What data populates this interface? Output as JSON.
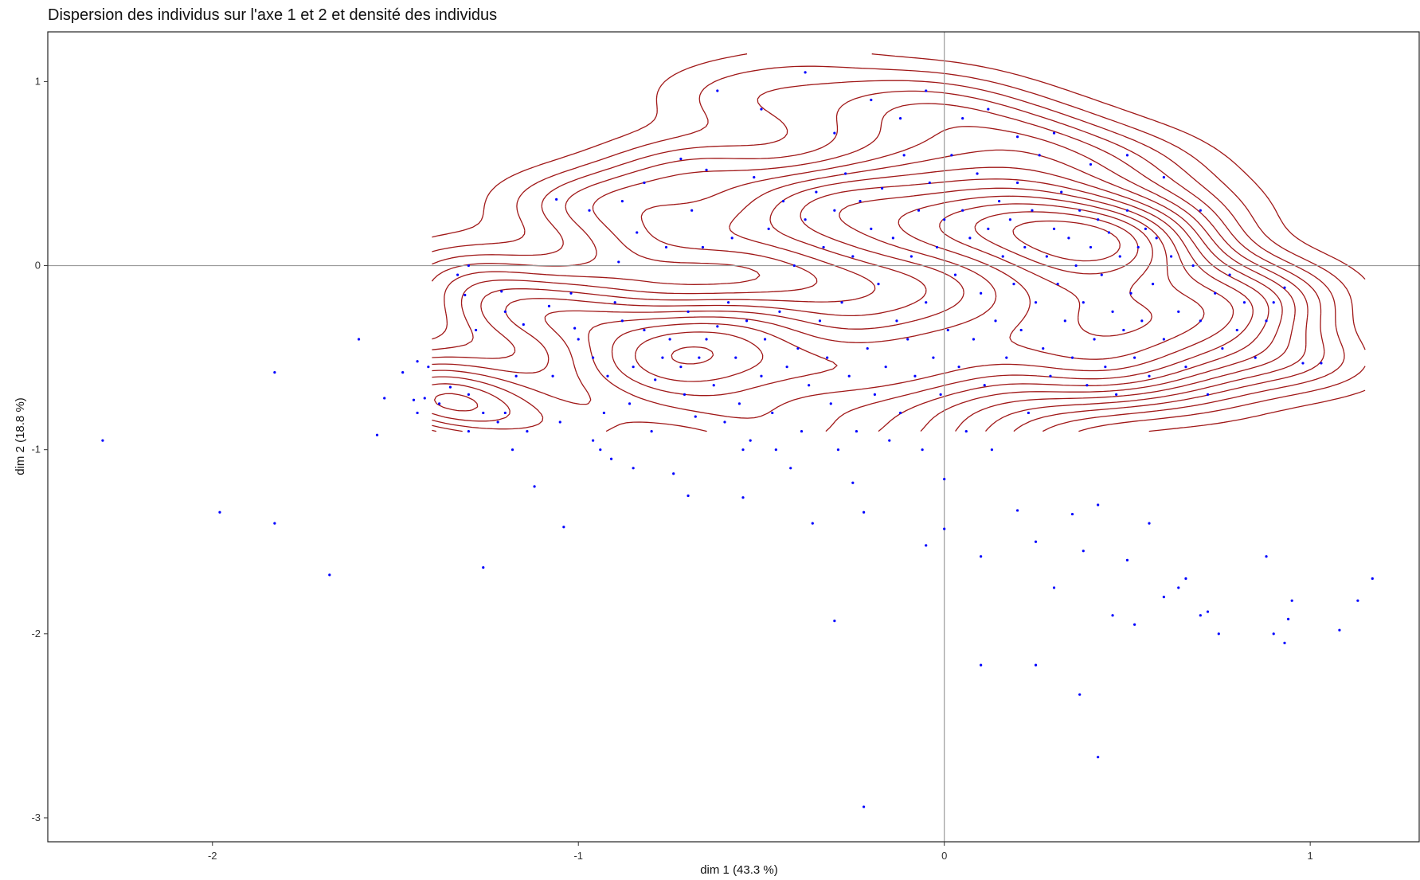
{
  "chart_data": {
    "type": "scatter",
    "title": "Dispersion des individus sur l'axe 1 et 2 et densité des individus",
    "xlabel": "dim 1 (43.3 %)",
    "ylabel": "dim 2 (18.8 %)",
    "xlim": [
      -2.45,
      1.3
    ],
    "ylim": [
      -3.13,
      1.27
    ],
    "xticks": [
      -2,
      -1,
      0,
      1
    ],
    "yticks": [
      -3,
      -2,
      -1,
      0,
      1
    ],
    "xtick_labels": [
      "-2",
      "-1",
      "0",
      "1"
    ],
    "ytick_labels": [
      "-3",
      "-2",
      "-1",
      "0",
      "1"
    ],
    "grid": false,
    "reference_lines": {
      "x": 0,
      "y": 0
    },
    "colors": {
      "points": "#0000ff",
      "contours": "#a01818",
      "reference_lines": "#9a9a9a",
      "frame": "#222222"
    },
    "series": [
      {
        "type": "scatter",
        "points": [
          [
            -2.3,
            -0.95
          ],
          [
            -1.98,
            -1.34
          ],
          [
            -1.83,
            -0.58
          ],
          [
            -1.83,
            -1.4
          ],
          [
            -1.68,
            -1.68
          ],
          [
            -1.6,
            -0.4
          ],
          [
            -1.55,
            -0.92
          ],
          [
            -1.53,
            -0.72
          ],
          [
            -1.48,
            -0.58
          ],
          [
            -1.45,
            -0.73
          ],
          [
            -1.44,
            -0.8
          ],
          [
            -1.44,
            -0.52
          ],
          [
            -1.42,
            -0.72
          ],
          [
            -1.41,
            -0.55
          ],
          [
            -1.38,
            -0.75
          ],
          [
            -1.35,
            -0.66
          ],
          [
            -1.33,
            -0.05
          ],
          [
            -1.31,
            -0.16
          ],
          [
            -1.3,
            0.0
          ],
          [
            -1.28,
            -0.35
          ],
          [
            -1.3,
            -0.9
          ],
          [
            -1.3,
            -0.7
          ],
          [
            -1.26,
            -0.8
          ],
          [
            -1.26,
            -1.64
          ],
          [
            -1.22,
            -0.85
          ],
          [
            -1.2,
            -0.8
          ],
          [
            -1.21,
            -0.14
          ],
          [
            -1.2,
            -0.25
          ],
          [
            -1.18,
            -1.0
          ],
          [
            -1.17,
            -0.6
          ],
          [
            -1.15,
            -0.32
          ],
          [
            -1.14,
            -0.9
          ],
          [
            -1.12,
            -1.2
          ],
          [
            -1.08,
            -0.22
          ],
          [
            -1.07,
            -0.6
          ],
          [
            -1.06,
            0.36
          ],
          [
            -1.05,
            -0.85
          ],
          [
            -1.04,
            -1.42
          ],
          [
            -1.02,
            -0.15
          ],
          [
            -1.01,
            -0.34
          ],
          [
            -1.0,
            -0.4
          ],
          [
            -0.97,
            0.3
          ],
          [
            -0.96,
            -0.5
          ],
          [
            -0.96,
            -0.95
          ],
          [
            -0.94,
            -1.0
          ],
          [
            -0.93,
            -0.8
          ],
          [
            -0.92,
            -0.6
          ],
          [
            -0.91,
            -1.05
          ],
          [
            -0.9,
            -0.2
          ],
          [
            -0.89,
            0.02
          ],
          [
            -0.88,
            -0.3
          ],
          [
            -0.86,
            -0.75
          ],
          [
            -0.85,
            -0.55
          ],
          [
            -0.84,
            0.18
          ],
          [
            -0.82,
            -0.35
          ],
          [
            -0.8,
            -0.9
          ],
          [
            -0.79,
            -0.62
          ],
          [
            -0.77,
            -0.5
          ],
          [
            -0.76,
            0.1
          ],
          [
            -0.75,
            -0.4
          ],
          [
            -0.74,
            -1.13
          ],
          [
            -0.72,
            -0.55
          ],
          [
            -0.71,
            -0.7
          ],
          [
            -0.7,
            -0.25
          ],
          [
            -0.69,
            0.3
          ],
          [
            -0.68,
            -0.82
          ],
          [
            -0.67,
            -0.5
          ],
          [
            -0.66,
            0.1
          ],
          [
            -0.65,
            -0.4
          ],
          [
            -0.63,
            -0.65
          ],
          [
            -0.62,
            -0.33
          ],
          [
            -0.6,
            -0.85
          ],
          [
            -0.59,
            -0.2
          ],
          [
            -0.58,
            0.15
          ],
          [
            -0.57,
            -0.5
          ],
          [
            -0.56,
            -0.75
          ],
          [
            -0.55,
            -1.26
          ],
          [
            -0.54,
            -0.3
          ],
          [
            -0.53,
            -0.95
          ],
          [
            -0.52,
            0.48
          ],
          [
            -0.5,
            -0.6
          ],
          [
            -0.49,
            -0.4
          ],
          [
            -0.48,
            0.2
          ],
          [
            -0.47,
            -0.8
          ],
          [
            -0.46,
            -1.0
          ],
          [
            -0.45,
            -0.25
          ],
          [
            -0.44,
            0.35
          ],
          [
            -0.43,
            -0.55
          ],
          [
            -0.42,
            -1.1
          ],
          [
            -0.41,
            0.0
          ],
          [
            -0.4,
            -0.45
          ],
          [
            -0.39,
            -0.9
          ],
          [
            -0.38,
            0.25
          ],
          [
            -0.37,
            -0.65
          ],
          [
            -0.36,
            -1.4
          ],
          [
            -0.35,
            0.4
          ],
          [
            -0.34,
            -0.3
          ],
          [
            -0.33,
            0.1
          ],
          [
            -0.32,
            -0.5
          ],
          [
            -0.31,
            -0.75
          ],
          [
            -0.3,
            0.3
          ],
          [
            -0.29,
            -1.0
          ],
          [
            -0.28,
            -0.2
          ],
          [
            -0.27,
            0.5
          ],
          [
            -0.26,
            -0.6
          ],
          [
            -0.25,
            0.05
          ],
          [
            -0.24,
            -0.9
          ],
          [
            -0.23,
            0.35
          ],
          [
            -0.22,
            -1.34
          ],
          [
            -0.21,
            -0.45
          ],
          [
            -0.2,
            0.2
          ],
          [
            -0.19,
            -0.7
          ],
          [
            -0.18,
            -0.1
          ],
          [
            -0.17,
            0.42
          ],
          [
            -0.16,
            -0.55
          ],
          [
            -0.15,
            -0.95
          ],
          [
            -0.14,
            0.15
          ],
          [
            -0.13,
            -0.3
          ],
          [
            -0.12,
            -0.8
          ],
          [
            -0.11,
            0.6
          ],
          [
            -0.1,
            -0.4
          ],
          [
            -0.09,
            0.05
          ],
          [
            -0.08,
            -0.6
          ],
          [
            -0.07,
            0.3
          ],
          [
            -0.06,
            -1.0
          ],
          [
            -0.05,
            -0.2
          ],
          [
            -0.04,
            0.45
          ],
          [
            -0.03,
            -0.5
          ],
          [
            -0.02,
            0.1
          ],
          [
            -0.01,
            -0.7
          ],
          [
            0.0,
            -1.16
          ],
          [
            0.0,
            0.25
          ],
          [
            0.01,
            -0.35
          ],
          [
            0.02,
            0.6
          ],
          [
            0.03,
            -0.05
          ],
          [
            0.04,
            -0.55
          ],
          [
            0.05,
            0.3
          ],
          [
            0.06,
            -0.9
          ],
          [
            0.07,
            0.15
          ],
          [
            0.08,
            -0.4
          ],
          [
            0.09,
            0.5
          ],
          [
            0.1,
            -0.15
          ],
          [
            0.11,
            -0.65
          ],
          [
            0.12,
            0.2
          ],
          [
            0.13,
            -1.0
          ],
          [
            0.14,
            -0.3
          ],
          [
            0.15,
            0.35
          ],
          [
            0.16,
            0.05
          ],
          [
            0.17,
            -0.5
          ],
          [
            0.18,
            0.25
          ],
          [
            0.19,
            -0.1
          ],
          [
            0.2,
            0.45
          ],
          [
            0.21,
            -0.35
          ],
          [
            0.22,
            0.1
          ],
          [
            0.23,
            -0.8
          ],
          [
            0.24,
            0.3
          ],
          [
            0.25,
            -0.2
          ],
          [
            0.26,
            0.6
          ],
          [
            0.27,
            -0.45
          ],
          [
            0.28,
            0.05
          ],
          [
            0.29,
            -0.6
          ],
          [
            0.3,
            0.2
          ],
          [
            0.31,
            -0.1
          ],
          [
            0.32,
            0.4
          ],
          [
            0.33,
            -0.3
          ],
          [
            0.34,
            0.15
          ],
          [
            0.35,
            -0.5
          ],
          [
            0.36,
            0.0
          ],
          [
            0.37,
            0.3
          ],
          [
            0.38,
            -0.2
          ],
          [
            0.39,
            -0.65
          ],
          [
            0.4,
            0.1
          ],
          [
            0.41,
            -0.4
          ],
          [
            0.42,
            0.25
          ],
          [
            0.43,
            -0.05
          ],
          [
            0.44,
            -0.55
          ],
          [
            0.45,
            0.18
          ],
          [
            0.46,
            -0.25
          ],
          [
            0.47,
            -0.7
          ],
          [
            0.48,
            0.05
          ],
          [
            0.49,
            -0.35
          ],
          [
            0.5,
            0.3
          ],
          [
            0.51,
            -0.15
          ],
          [
            0.52,
            -0.5
          ],
          [
            0.53,
            0.1
          ],
          [
            0.54,
            -0.3
          ],
          [
            0.55,
            0.2
          ],
          [
            0.56,
            -0.6
          ],
          [
            0.57,
            -0.1
          ],
          [
            0.58,
            0.15
          ],
          [
            0.6,
            -0.4
          ],
          [
            0.62,
            0.05
          ],
          [
            0.64,
            -0.25
          ],
          [
            0.66,
            -0.55
          ],
          [
            0.68,
            0.0
          ],
          [
            0.7,
            -0.3
          ],
          [
            0.72,
            -0.7
          ],
          [
            0.74,
            -0.15
          ],
          [
            0.76,
            -0.45
          ],
          [
            0.78,
            -0.05
          ],
          [
            0.8,
            -0.35
          ],
          [
            0.82,
            -0.2
          ],
          [
            0.85,
            -0.5
          ],
          [
            0.88,
            -0.3
          ],
          [
            0.9,
            -0.2
          ],
          [
            0.93,
            -0.12
          ],
          [
            0.98,
            -0.53
          ],
          [
            -0.62,
            0.95
          ],
          [
            -0.5,
            0.85
          ],
          [
            -0.38,
            1.05
          ],
          [
            -0.3,
            0.72
          ],
          [
            -0.2,
            0.9
          ],
          [
            -0.12,
            0.8
          ],
          [
            -0.05,
            0.95
          ],
          [
            0.05,
            0.8
          ],
          [
            0.12,
            0.85
          ],
          [
            0.2,
            0.7
          ],
          [
            0.3,
            0.72
          ],
          [
            0.4,
            0.55
          ],
          [
            0.5,
            0.6
          ],
          [
            0.6,
            0.48
          ],
          [
            0.7,
            0.3
          ],
          [
            -0.65,
            0.52
          ],
          [
            -0.82,
            0.45
          ],
          [
            -0.88,
            0.35
          ],
          [
            -0.72,
            0.58
          ],
          [
            0.1,
            -1.58
          ],
          [
            0.2,
            -1.33
          ],
          [
            0.25,
            -1.5
          ],
          [
            0.3,
            -1.75
          ],
          [
            0.35,
            -1.35
          ],
          [
            0.38,
            -1.55
          ],
          [
            0.42,
            -1.3
          ],
          [
            0.46,
            -1.9
          ],
          [
            0.5,
            -1.6
          ],
          [
            0.52,
            -1.95
          ],
          [
            0.56,
            -1.4
          ],
          [
            0.6,
            -1.8
          ],
          [
            0.64,
            -1.75
          ],
          [
            0.66,
            -1.7
          ],
          [
            0.7,
            -1.9
          ],
          [
            0.72,
            -1.88
          ],
          [
            0.75,
            -2.0
          ],
          [
            0.88,
            -1.58
          ],
          [
            0.9,
            -2.0
          ],
          [
            0.93,
            -2.05
          ],
          [
            0.94,
            -1.92
          ],
          [
            0.95,
            -1.82
          ],
          [
            1.08,
            -1.98
          ],
          [
            1.13,
            -1.82
          ],
          [
            1.17,
            -1.7
          ],
          [
            1.03,
            -0.53
          ],
          [
            -0.3,
            -1.93
          ],
          [
            -0.22,
            -2.94
          ],
          [
            0.1,
            -2.17
          ],
          [
            0.25,
            -2.17
          ],
          [
            0.37,
            -2.33
          ],
          [
            0.42,
            -2.67
          ],
          [
            -0.05,
            -1.52
          ],
          [
            0.0,
            -1.43
          ],
          [
            -0.25,
            -1.18
          ],
          [
            -0.55,
            -1.0
          ],
          [
            -0.7,
            -1.25
          ],
          [
            -0.85,
            -1.1
          ]
        ]
      },
      {
        "type": "density_contours",
        "levels": 14
      }
    ]
  }
}
